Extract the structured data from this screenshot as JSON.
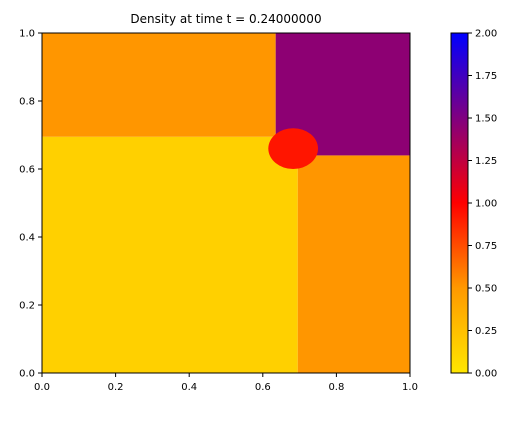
{
  "chart_data": {
    "type": "heatmap",
    "title": "Density at time t =      0.24000000",
    "xlabel": "",
    "ylabel": "",
    "xlim": [
      0,
      1
    ],
    "ylim": [
      0,
      1
    ],
    "x_ticks": [
      "0.0",
      "0.2",
      "0.4",
      "0.6",
      "0.8",
      "1.0"
    ],
    "y_ticks": [
      "0.0",
      "0.2",
      "0.4",
      "0.6",
      "0.8",
      "1.0"
    ],
    "colorbar": {
      "range": [
        0.0,
        2.0
      ],
      "ticks": [
        "0.00",
        "0.25",
        "0.50",
        "0.75",
        "1.00",
        "1.25",
        "1.50",
        "1.75",
        "2.00"
      ],
      "colors": [
        "#ffe600",
        "#ff9900",
        "#ff0000",
        "#800080",
        "#0000ff"
      ]
    },
    "regions": [
      {
        "name": "lower-left",
        "x": [
          0.0,
          0.695
        ],
        "y": [
          0.0,
          0.695
        ],
        "density": 0.14
      },
      {
        "name": "upper-left",
        "x": [
          0.0,
          0.635
        ],
        "y": [
          0.695,
          1.0
        ],
        "density": 0.51
      },
      {
        "name": "lower-right",
        "x": [
          0.695,
          1.0
        ],
        "y": [
          0.0,
          0.64
        ],
        "density": 0.51
      },
      {
        "name": "upper-right",
        "x": [
          0.635,
          1.0
        ],
        "y": [
          0.64,
          1.0
        ],
        "density": 1.45
      },
      {
        "name": "interaction",
        "x": [
          0.615,
          0.75
        ],
        "y": [
          0.6,
          0.72
        ],
        "density": 0.93
      }
    ]
  }
}
